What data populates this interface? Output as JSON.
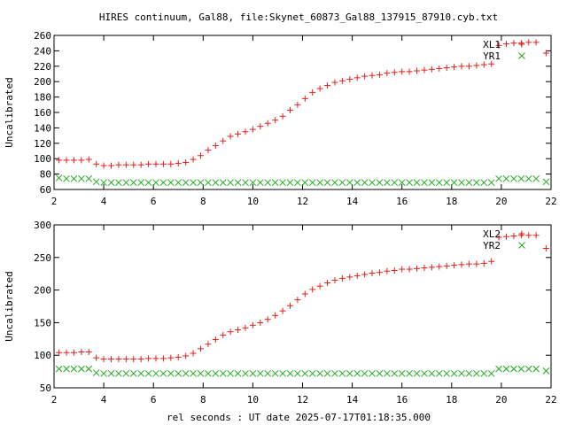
{
  "title": "HIRES continuum, Gal88, file:Skynet_60873_Gal88_137915_87910.cyb.txt",
  "xlabel": "rel seconds : UT date 2025-07-17T01:18:35.000",
  "colors": {
    "red": "#e0201c",
    "green": "#1faa1f"
  },
  "chart_data": [
    {
      "type": "scatter",
      "ylabel": "Uncalibrated",
      "xlim": [
        2,
        22
      ],
      "ylim": [
        60,
        260
      ],
      "xticks": [
        2,
        4,
        6,
        8,
        10,
        12,
        14,
        16,
        18,
        20,
        22
      ],
      "yticks": [
        60,
        80,
        100,
        120,
        140,
        160,
        180,
        200,
        220,
        240,
        260
      ],
      "legend_placement": "top-right",
      "series": [
        {
          "name": "XL1",
          "marker": "plus",
          "color": "#e0201c",
          "x": [
            2.2,
            2.5,
            2.8,
            3.1,
            3.4,
            3.7,
            4.0,
            4.3,
            4.6,
            4.9,
            5.2,
            5.5,
            5.8,
            6.1,
            6.4,
            6.7,
            7.0,
            7.3,
            7.6,
            7.9,
            8.2,
            8.5,
            8.8,
            9.1,
            9.4,
            9.7,
            10.0,
            10.3,
            10.6,
            10.9,
            11.2,
            11.5,
            11.8,
            12.1,
            12.4,
            12.7,
            13.0,
            13.3,
            13.6,
            13.9,
            14.2,
            14.5,
            14.8,
            15.1,
            15.4,
            15.7,
            16.0,
            16.3,
            16.6,
            16.9,
            17.2,
            17.5,
            17.8,
            18.1,
            18.4,
            18.7,
            19.0,
            19.3,
            19.6,
            19.9,
            20.2,
            20.5,
            20.8,
            21.1,
            21.4,
            21.8
          ],
          "y": [
            98,
            98,
            98,
            98,
            99,
            93,
            91,
            91,
            92,
            92,
            92,
            92,
            93,
            93,
            93,
            93,
            94,
            95,
            99,
            104,
            111,
            117,
            123,
            129,
            132,
            135,
            138,
            142,
            146,
            150,
            155,
            163,
            170,
            178,
            186,
            191,
            195,
            199,
            201,
            203,
            205,
            207,
            208,
            209,
            211,
            212,
            213,
            213,
            214,
            215,
            216,
            217,
            218,
            219,
            220,
            220,
            221,
            222,
            223,
            247,
            249,
            250,
            250,
            251,
            251,
            237
          ]
        },
        {
          "name": "YR1",
          "marker": "cross",
          "color": "#1faa1f",
          "x": [
            2.2,
            2.5,
            2.8,
            3.1,
            3.4,
            3.7,
            4.0,
            4.3,
            4.6,
            4.9,
            5.2,
            5.5,
            5.8,
            6.1,
            6.4,
            6.7,
            7.0,
            7.3,
            7.6,
            7.9,
            8.2,
            8.5,
            8.8,
            9.1,
            9.4,
            9.7,
            10.0,
            10.3,
            10.6,
            10.9,
            11.2,
            11.5,
            11.8,
            12.1,
            12.4,
            12.7,
            13.0,
            13.3,
            13.6,
            13.9,
            14.2,
            14.5,
            14.8,
            15.1,
            15.4,
            15.7,
            16.0,
            16.3,
            16.6,
            16.9,
            17.2,
            17.5,
            17.8,
            18.1,
            18.4,
            18.7,
            19.0,
            19.3,
            19.6,
            19.9,
            20.2,
            20.5,
            20.8,
            21.1,
            21.4,
            21.8
          ],
          "y": [
            75,
            74,
            74,
            74,
            74,
            70,
            69,
            69,
            69,
            69,
            69,
            69,
            69,
            69,
            69,
            69,
            69,
            69,
            69,
            69,
            69,
            69,
            69,
            69,
            69,
            69,
            69,
            69,
            69,
            69,
            69,
            69,
            69,
            69,
            69,
            69,
            69,
            69,
            69,
            69,
            69,
            69,
            69,
            69,
            69,
            69,
            69,
            69,
            69,
            69,
            69,
            69,
            69,
            69,
            69,
            69,
            69,
            69,
            69,
            74,
            74,
            74,
            74,
            74,
            74,
            70
          ]
        }
      ]
    },
    {
      "type": "scatter",
      "ylabel": "Uncalibrated",
      "xlim": [
        2,
        22
      ],
      "ylim": [
        50,
        300
      ],
      "xticks": [
        2,
        4,
        6,
        8,
        10,
        12,
        14,
        16,
        18,
        20,
        22
      ],
      "yticks": [
        50,
        100,
        150,
        200,
        250,
        300
      ],
      "legend_placement": "top-right",
      "series": [
        {
          "name": "XL2",
          "marker": "plus",
          "color": "#e0201c",
          "x": [
            2.2,
            2.5,
            2.8,
            3.1,
            3.4,
            3.7,
            4.0,
            4.3,
            4.6,
            4.9,
            5.2,
            5.5,
            5.8,
            6.1,
            6.4,
            6.7,
            7.0,
            7.3,
            7.6,
            7.9,
            8.2,
            8.5,
            8.8,
            9.1,
            9.4,
            9.7,
            10.0,
            10.3,
            10.6,
            10.9,
            11.2,
            11.5,
            11.8,
            12.1,
            12.4,
            12.7,
            13.0,
            13.3,
            13.6,
            13.9,
            14.2,
            14.5,
            14.8,
            15.1,
            15.4,
            15.7,
            16.0,
            16.3,
            16.6,
            16.9,
            17.2,
            17.5,
            17.8,
            18.1,
            18.4,
            18.7,
            19.0,
            19.3,
            19.6,
            19.9,
            20.2,
            20.5,
            20.8,
            21.1,
            21.4,
            21.8
          ],
          "y": [
            104,
            104,
            104,
            105,
            105,
            96,
            94,
            94,
            94,
            94,
            94,
            94,
            95,
            95,
            95,
            96,
            97,
            99,
            103,
            110,
            117,
            124,
            131,
            136,
            139,
            142,
            146,
            150,
            155,
            161,
            168,
            176,
            185,
            194,
            201,
            206,
            211,
            215,
            218,
            220,
            222,
            224,
            226,
            227,
            229,
            230,
            232,
            232,
            233,
            234,
            235,
            236,
            237,
            238,
            239,
            240,
            240,
            241,
            244,
            281,
            282,
            283,
            284,
            284,
            284,
            264
          ]
        },
        {
          "name": "YR2",
          "marker": "cross",
          "color": "#1faa1f",
          "x": [
            2.2,
            2.5,
            2.8,
            3.1,
            3.4,
            3.7,
            4.0,
            4.3,
            4.6,
            4.9,
            5.2,
            5.5,
            5.8,
            6.1,
            6.4,
            6.7,
            7.0,
            7.3,
            7.6,
            7.9,
            8.2,
            8.5,
            8.8,
            9.1,
            9.4,
            9.7,
            10.0,
            10.3,
            10.6,
            10.9,
            11.2,
            11.5,
            11.8,
            12.1,
            12.4,
            12.7,
            13.0,
            13.3,
            13.6,
            13.9,
            14.2,
            14.5,
            14.8,
            15.1,
            15.4,
            15.7,
            16.0,
            16.3,
            16.6,
            16.9,
            17.2,
            17.5,
            17.8,
            18.1,
            18.4,
            18.7,
            19.0,
            19.3,
            19.6,
            19.9,
            20.2,
            20.5,
            20.8,
            21.1,
            21.4,
            21.8
          ],
          "y": [
            79,
            79,
            79,
            79,
            79,
            73,
            72,
            72,
            72,
            72,
            72,
            72,
            72,
            72,
            72,
            72,
            72,
            72,
            72,
            72,
            72,
            72,
            72,
            72,
            72,
            72,
            72,
            72,
            72,
            72,
            72,
            72,
            72,
            72,
            72,
            72,
            72,
            72,
            72,
            72,
            72,
            72,
            72,
            72,
            72,
            72,
            72,
            72,
            72,
            72,
            72,
            72,
            72,
            72,
            72,
            72,
            72,
            72,
            72,
            79,
            79,
            79,
            79,
            79,
            79,
            76
          ]
        }
      ]
    }
  ]
}
